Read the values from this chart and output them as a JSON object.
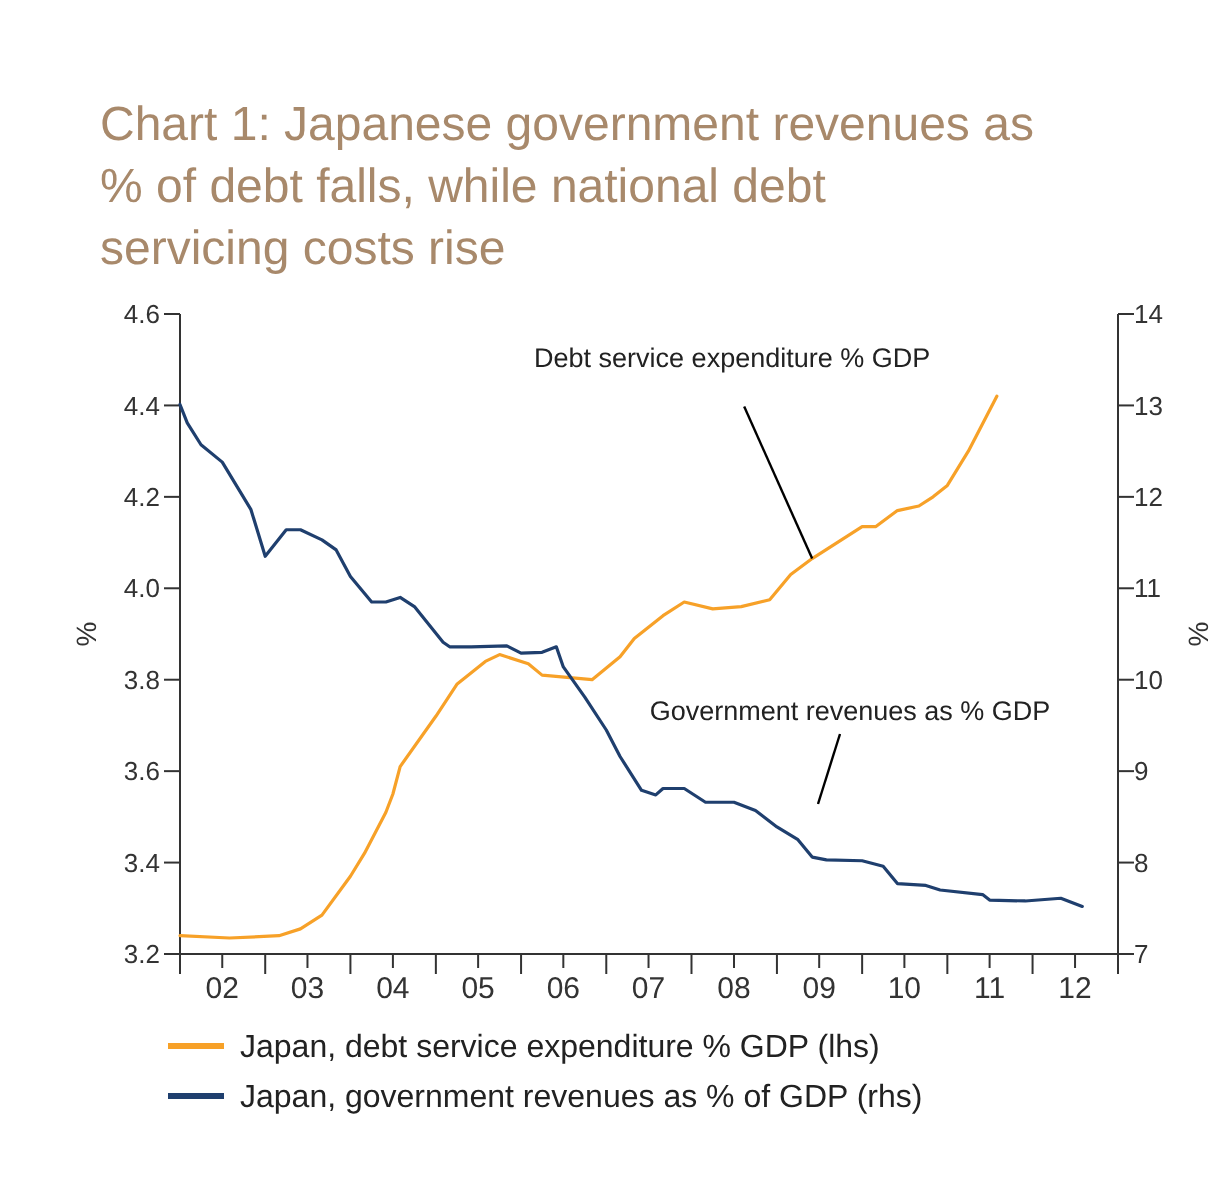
{
  "chart_data": {
    "type": "line",
    "title": "Chart 1: Japanese government revenues as % of debt falls, while national debt servicing costs rise",
    "ylabel": "%",
    "y2label": "%",
    "xlim": [
      "2002-01",
      "2013-01"
    ],
    "xticks": [
      {
        "value": "2002-01",
        "label": null
      },
      {
        "value": "2002-07",
        "label": "02"
      },
      {
        "value": "2003-01",
        "label": null
      },
      {
        "value": "2003-07",
        "label": "03"
      },
      {
        "value": "2004-01",
        "label": null
      },
      {
        "value": "2004-07",
        "label": "04"
      },
      {
        "value": "2005-01",
        "label": null
      },
      {
        "value": "2005-07",
        "label": "05"
      },
      {
        "value": "2006-01",
        "label": null
      },
      {
        "value": "2006-07",
        "label": "06"
      },
      {
        "value": "2007-01",
        "label": null
      },
      {
        "value": "2007-07",
        "label": "07"
      },
      {
        "value": "2008-01",
        "label": null
      },
      {
        "value": "2008-07",
        "label": "08"
      },
      {
        "value": "2009-01",
        "label": null
      },
      {
        "value": "2009-07",
        "label": "09"
      },
      {
        "value": "2010-01",
        "label": null
      },
      {
        "value": "2010-07",
        "label": "10"
      },
      {
        "value": "2011-01",
        "label": null
      },
      {
        "value": "2011-07",
        "label": "11"
      },
      {
        "value": "2012-01",
        "label": null
      },
      {
        "value": "2012-07",
        "label": "12"
      },
      {
        "value": "2013-01",
        "label": null
      }
    ],
    "ylim": [
      3.2,
      4.6
    ],
    "yticks": [
      3.2,
      3.4,
      3.6,
      3.8,
      {
        "value": 4,
        "label": "4.0"
      },
      4.2,
      4.4,
      4.6
    ],
    "y2lim": [
      7,
      14
    ],
    "y2ticks": [
      7,
      8,
      9,
      10,
      11,
      12,
      13,
      14
    ],
    "legend": "bottom",
    "grid": false,
    "marker": "none",
    "line_style": "solid",
    "series": [
      {
        "name": "Japan, debt service expenditure % GDP (lhs)",
        "color": "#f7a128",
        "x": [
          "2002-01",
          "2002-08",
          "2003-03",
          "2003-06",
          "2003-09",
          "2004-01",
          "2004-03",
          "2004-06",
          "2004-07",
          "2004-08",
          "2005-01",
          "2005-04",
          "2005-08",
          "2005-10",
          "2006-02",
          "2006-04",
          "2006-11",
          "2007-03",
          "2007-05",
          "2007-09",
          "2007-12",
          "2008-04",
          "2008-08",
          "2008-12",
          "2009-03",
          "2009-06",
          "2010-01",
          "2010-03",
          "2010-06",
          "2010-09",
          "2010-11",
          "2011-01",
          "2011-04",
          "2011-08"
        ],
        "values": [
          3.24,
          3.235,
          3.24,
          3.255,
          3.285,
          3.37,
          3.42,
          3.51,
          3.55,
          3.61,
          3.72,
          3.79,
          3.84,
          3.855,
          3.835,
          3.81,
          3.8,
          3.85,
          3.89,
          3.94,
          3.97,
          3.955,
          3.96,
          3.975,
          4.03,
          4.065,
          4.135,
          4.135,
          4.17,
          4.18,
          4.2,
          4.225,
          4.3,
          4.42
        ]
      },
      {
        "name": "Japan, government revenues as % of GDP (rhs)",
        "color": "#1f3f6e",
        "axis": "y2",
        "x": [
          "2002-01",
          "2002-02",
          "2002-04",
          "2002-07",
          "2002-11",
          "2003-01",
          "2003-04",
          "2003-06",
          "2003-09",
          "2003-11",
          "2004-01",
          "2004-04",
          "2004-06",
          "2004-08",
          "2004-10",
          "2005-02",
          "2005-03",
          "2005-06",
          "2005-11",
          "2006-01",
          "2006-04",
          "2006-06",
          "2006-07",
          "2006-10",
          "2007-01",
          "2007-03",
          "2007-06",
          "2007-08",
          "2007-09",
          "2007-12",
          "2008-03",
          "2008-07",
          "2008-10",
          "2009-01",
          "2009-04",
          "2009-06",
          "2009-08",
          "2010-01",
          "2010-04",
          "2010-06",
          "2010-10",
          "2010-12",
          "2011-06",
          "2011-07",
          "2011-12",
          "2012-05",
          "2012-08"
        ],
        "values": [
          13.01,
          12.81,
          12.57,
          12.38,
          11.86,
          11.35,
          11.64,
          11.64,
          11.53,
          11.42,
          11.13,
          10.85,
          10.85,
          10.9,
          10.8,
          10.41,
          10.36,
          10.36,
          10.37,
          10.29,
          10.3,
          10.36,
          10.14,
          9.81,
          9.45,
          9.16,
          8.79,
          8.74,
          8.81,
          8.81,
          8.66,
          8.66,
          8.57,
          8.39,
          8.25,
          8.06,
          8.03,
          8.02,
          7.96,
          7.77,
          7.75,
          7.7,
          7.65,
          7.59,
          7.58,
          7.61,
          7.52
        ]
      }
    ],
    "annotations": [
      {
        "text": "Debt service expenditure % GDP",
        "x": "2009-06",
        "y": 4.065
      },
      "Government revenues as % GDP"
    ]
  }
}
